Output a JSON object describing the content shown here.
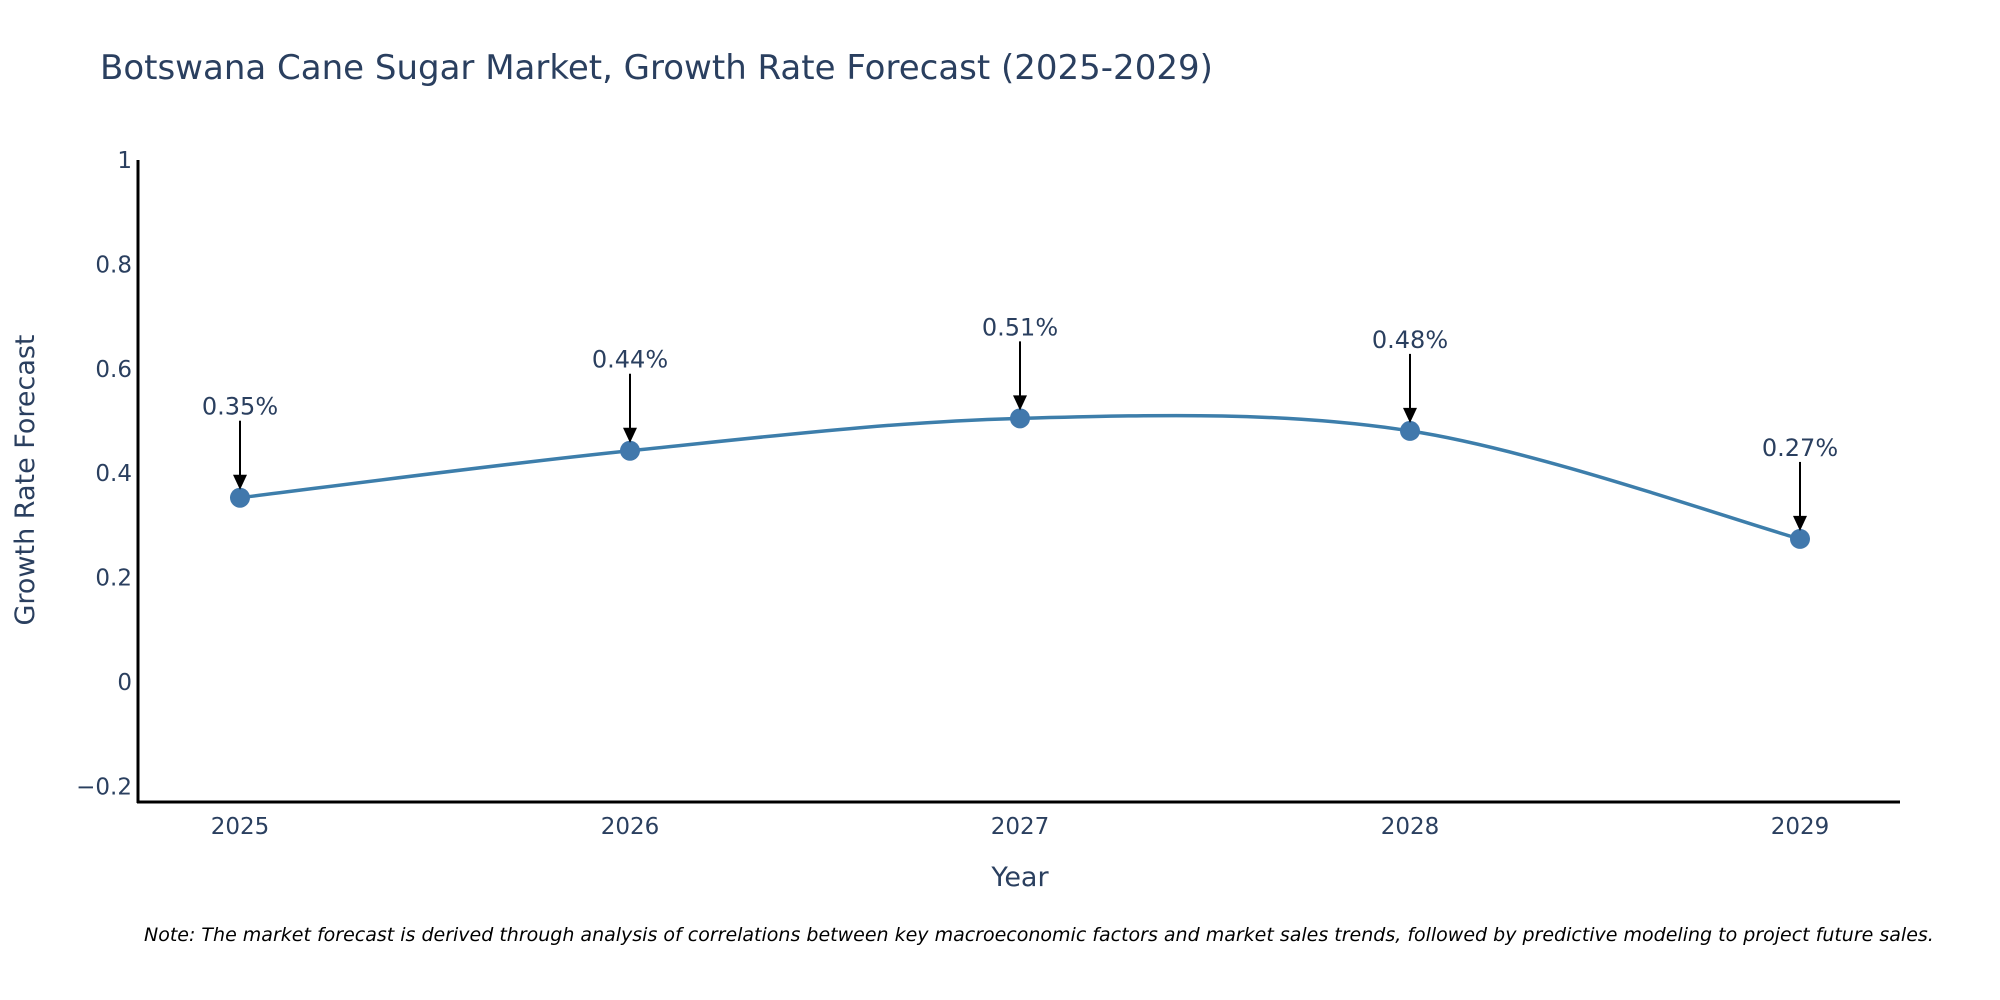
{
  "colors": {
    "line": "#3d7eab",
    "marker": "#4178ac",
    "axis": "#000000",
    "text": "#2a3f5f"
  },
  "chart_data": {
    "type": "line",
    "title": "Botswana Cane Sugar Market, Growth Rate Forecast (2025-2029)",
    "xlabel": "Year",
    "ylabel": "Growth Rate Forecast",
    "categories": [
      "2025",
      "2026",
      "2027",
      "2028",
      "2029"
    ],
    "series": [
      {
        "name": "Growth Rate Forecast",
        "values": [
          0.353,
          0.443,
          0.505,
          0.481,
          0.274
        ]
      }
    ],
    "annotations": [
      "0.35%",
      "0.44%",
      "0.51%",
      "0.48%",
      "0.27%"
    ],
    "ylim": [
      -0.23,
      1.0
    ],
    "yticks": [
      -0.2,
      0,
      0.2,
      0.4,
      0.6,
      0.8,
      1
    ],
    "ytick_labels": [
      "−0.2",
      "0",
      "0.2",
      "0.4",
      "0.6",
      "0.8",
      "1"
    ],
    "grid": false,
    "line_shape": "spline",
    "note": "Note: The market forecast is derived through analysis of correlations between key macroeconomic factors and market sales trends, followed by predictive modeling to project future sales."
  }
}
